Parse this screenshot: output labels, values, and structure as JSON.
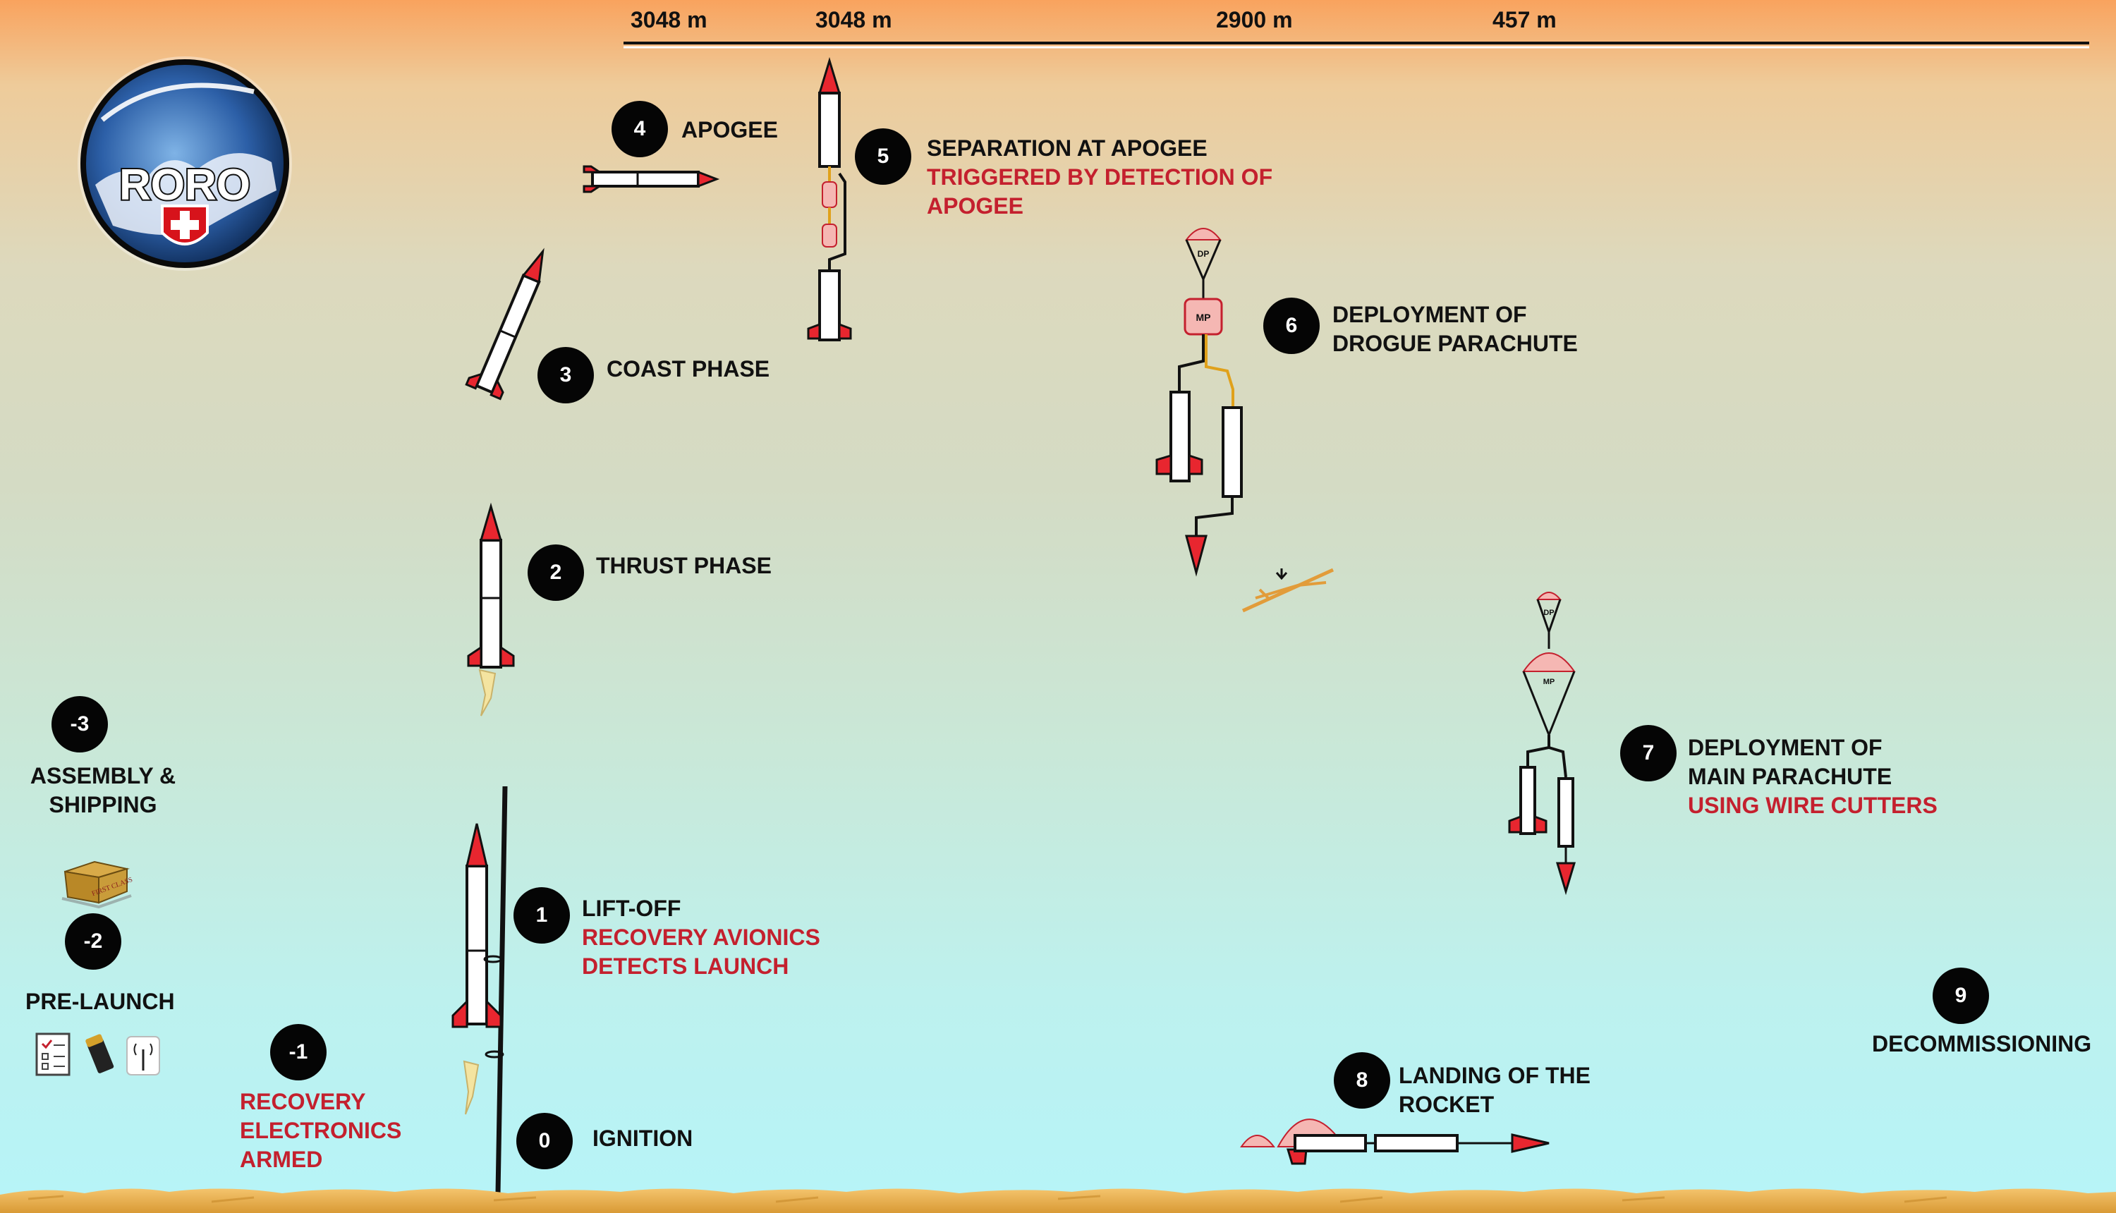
{
  "altitudes": [
    "3048 m",
    "3048 m",
    "2900 m",
    "457 m"
  ],
  "logo": {
    "text": "RORO",
    "icon": "swiss-cross-globe-logo"
  },
  "steps": [
    {
      "num": "-3",
      "lines": [
        "ASSEMBLY &",
        "SHIPPING"
      ],
      "red": []
    },
    {
      "num": "-2",
      "lines": [
        "PRE-LAUNCH"
      ],
      "red": []
    },
    {
      "num": "-1",
      "lines": [],
      "red": [
        "RECOVERY",
        "ELECTRONICS",
        "ARMED"
      ]
    },
    {
      "num": "0",
      "lines": [
        "IGNITION"
      ],
      "red": []
    },
    {
      "num": "1",
      "lines": [
        "LIFT-OFF"
      ],
      "red": [
        "RECOVERY AVIONICS",
        "DETECTS LAUNCH"
      ]
    },
    {
      "num": "2",
      "lines": [
        "THRUST PHASE"
      ],
      "red": []
    },
    {
      "num": "3",
      "lines": [
        "COAST PHASE"
      ],
      "red": []
    },
    {
      "num": "4",
      "lines": [
        "APOGEE"
      ],
      "red": []
    },
    {
      "num": "5",
      "lines": [
        "SEPARATION AT APOGEE"
      ],
      "red": [
        "TRIGGERED BY DETECTION OF",
        "APOGEE"
      ]
    },
    {
      "num": "6",
      "lines": [
        "DEPLOYMENT OF",
        "DROGUE PARACHUTE"
      ],
      "red": []
    },
    {
      "num": "7",
      "lines": [
        "DEPLOYMENT OF",
        "MAIN PARACHUTE"
      ],
      "red": [
        "USING WIRE CUTTERS"
      ]
    },
    {
      "num": "8",
      "lines": [
        "LANDING OF THE",
        "ROCKET"
      ],
      "red": []
    },
    {
      "num": "9",
      "lines": [
        "DECOMMISSIONING"
      ],
      "red": []
    }
  ],
  "chute_labels": {
    "drogue": "DP",
    "main": "MP"
  },
  "box_label": "FIRST CLASS",
  "colors": {
    "accent_red": "#c4202e",
    "fin_red": "#e8262f",
    "badge": "#050505",
    "shock_cord_gold": "#e0a11b",
    "parachute_pink": "#f5b7b3"
  }
}
